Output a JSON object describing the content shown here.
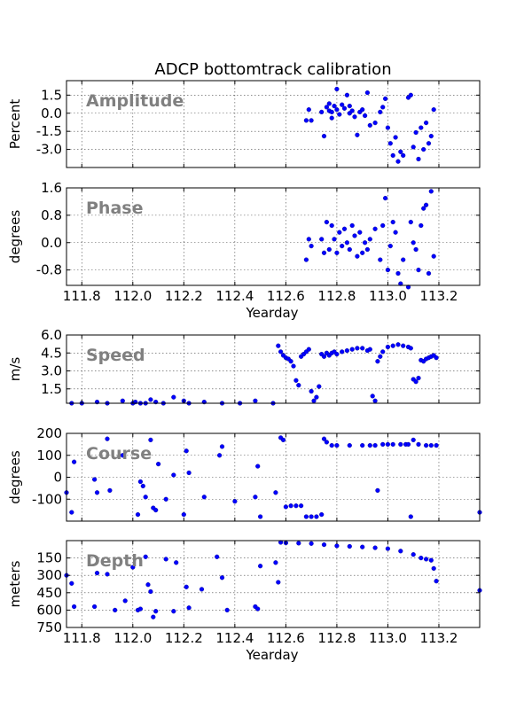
{
  "chart_title": "ADCP bottomtrack calibration",
  "color": "#0000ff",
  "chart_data": [
    {
      "type": "scatter",
      "panel_label": "Amplitude",
      "ylabel": "Percent",
      "xlabel": "",
      "xlim": [
        111.74,
        113.36
      ],
      "ylim": [
        -4.5,
        2.7
      ],
      "ylim_inverted": false,
      "yticks": [
        1.5,
        0.0,
        -1.5,
        -3.0
      ],
      "ytick_labels": [
        "1.5",
        "0.0",
        "-1.5",
        "-3.0"
      ],
      "xticks": [
        111.8,
        112.0,
        112.2,
        112.4,
        112.6,
        112.8,
        113.0,
        113.2
      ],
      "xtick_labels": [],
      "grid": true,
      "x": [
        112.68,
        112.69,
        112.7,
        112.74,
        112.75,
        112.76,
        112.77,
        112.77,
        112.78,
        112.78,
        112.79,
        112.8,
        112.8,
        112.81,
        112.82,
        112.83,
        112.84,
        112.85,
        112.85,
        112.86,
        112.87,
        112.88,
        112.89,
        112.9,
        112.91,
        112.92,
        112.93,
        112.95,
        112.97,
        112.98,
        112.99,
        113.0,
        113.01,
        113.02,
        113.03,
        113.04,
        113.05,
        113.06,
        113.08,
        113.09,
        113.1,
        113.11,
        113.12,
        113.13,
        113.14,
        113.15,
        113.16,
        113.17,
        113.18
      ],
      "y": [
        -0.6,
        0.3,
        -0.6,
        0.1,
        -1.9,
        0.5,
        0.2,
        0.8,
        0.1,
        -0.4,
        0.6,
        0.3,
        2.0,
        -0.1,
        0.7,
        0.4,
        1.5,
        0.0,
        0.6,
        0.2,
        -0.3,
        -1.8,
        0.1,
        0.3,
        -0.2,
        1.7,
        -1.0,
        -0.8,
        0.1,
        0.5,
        1.2,
        -1.2,
        -2.5,
        -3.5,
        -2.0,
        -4.0,
        -3.2,
        -3.5,
        1.3,
        1.5,
        -2.8,
        -1.6,
        -3.8,
        -1.2,
        -3.0,
        -0.8,
        -2.5,
        -1.9,
        0.3
      ]
    },
    {
      "type": "scatter",
      "panel_label": "Phase",
      "ylabel": "degrees",
      "xlabel": "Yearday",
      "xlim": [
        111.74,
        113.36
      ],
      "ylim": [
        -1.25,
        1.6
      ],
      "ylim_inverted": false,
      "yticks": [
        1.6,
        0.8,
        0.0,
        -0.8
      ],
      "ytick_labels": [
        "1.6",
        "0.8",
        "0.0",
        "-0.8"
      ],
      "xticks": [
        111.8,
        112.0,
        112.2,
        112.4,
        112.6,
        112.8,
        113.0,
        113.2
      ],
      "xtick_labels": [
        "111.8",
        "112.0",
        "112.2",
        "112.4",
        "112.6",
        "112.8",
        "113.0",
        "113.2"
      ],
      "grid": true,
      "x": [
        112.68,
        112.69,
        112.7,
        112.74,
        112.75,
        112.76,
        112.77,
        112.78,
        112.79,
        112.8,
        112.81,
        112.82,
        112.83,
        112.84,
        112.85,
        112.86,
        112.87,
        112.88,
        112.89,
        112.9,
        112.91,
        112.92,
        112.93,
        112.95,
        112.97,
        112.98,
        112.99,
        113.0,
        113.01,
        113.02,
        113.03,
        113.04,
        113.05,
        113.06,
        113.08,
        113.09,
        113.1,
        113.11,
        113.12,
        113.13,
        113.14,
        113.15,
        113.16,
        113.17,
        113.18
      ],
      "y": [
        -0.5,
        0.1,
        -0.1,
        0.1,
        -0.3,
        0.6,
        -0.2,
        0.5,
        0.1,
        -0.3,
        0.3,
        -0.1,
        0.4,
        0.0,
        -0.2,
        0.5,
        0.2,
        -0.4,
        0.3,
        -0.3,
        0.0,
        -0.2,
        0.1,
        0.4,
        -0.5,
        0.5,
        1.3,
        -0.8,
        -0.1,
        0.6,
        0.3,
        -0.9,
        -1.2,
        -0.5,
        -1.3,
        0.6,
        0.0,
        -0.2,
        -0.8,
        0.5,
        1.0,
        1.1,
        -0.9,
        1.5,
        -0.4
      ]
    },
    {
      "type": "scatter",
      "panel_label": "Speed",
      "ylabel": "m/s",
      "xlabel": "",
      "xlim": [
        111.74,
        113.36
      ],
      "ylim": [
        0.3,
        6.0
      ],
      "ylim_inverted": false,
      "yticks": [
        6.0,
        4.5,
        3.0,
        1.5
      ],
      "ytick_labels": [
        "6.0",
        "4.5",
        "3.0",
        "1.5"
      ],
      "xticks": [
        111.8,
        112.0,
        112.2,
        112.4,
        112.6,
        112.8,
        113.0,
        113.2
      ],
      "xtick_labels": [],
      "grid": true,
      "x": [
        111.76,
        111.8,
        111.86,
        111.9,
        111.96,
        112.0,
        112.01,
        112.03,
        112.05,
        112.07,
        112.09,
        112.12,
        112.16,
        112.2,
        112.22,
        112.28,
        112.35,
        112.42,
        112.48,
        112.55,
        112.57,
        112.58,
        112.59,
        112.6,
        112.61,
        112.62,
        112.63,
        112.64,
        112.65,
        112.66,
        112.67,
        112.68,
        112.69,
        112.7,
        112.71,
        112.72,
        112.73,
        112.74,
        112.75,
        112.76,
        112.77,
        112.78,
        112.79,
        112.8,
        112.82,
        112.84,
        112.86,
        112.88,
        112.9,
        112.92,
        112.93,
        112.94,
        112.95,
        112.96,
        112.97,
        112.98,
        113.0,
        113.02,
        113.04,
        113.06,
        113.08,
        113.09,
        113.1,
        113.11,
        113.12,
        113.13,
        113.14,
        113.15,
        113.16,
        113.17,
        113.18,
        113.19
      ],
      "y": [
        0.3,
        0.3,
        0.4,
        0.3,
        0.5,
        0.3,
        0.4,
        0.3,
        0.3,
        0.6,
        0.4,
        0.3,
        0.8,
        0.5,
        0.3,
        0.4,
        0.3,
        0.3,
        0.5,
        0.3,
        5.1,
        4.6,
        4.3,
        4.1,
        4.0,
        3.8,
        3.4,
        2.2,
        1.8,
        4.2,
        4.4,
        4.6,
        4.8,
        1.3,
        0.5,
        0.8,
        1.7,
        4.4,
        4.2,
        4.5,
        4.3,
        4.5,
        4.6,
        4.4,
        4.6,
        4.7,
        4.8,
        4.9,
        4.9,
        4.7,
        4.8,
        0.9,
        0.5,
        3.8,
        4.2,
        4.6,
        5.0,
        5.1,
        5.2,
        5.1,
        5.0,
        4.9,
        2.3,
        2.1,
        2.4,
        3.9,
        3.8,
        4.0,
        4.1,
        4.2,
        4.3,
        4.1
      ]
    },
    {
      "type": "scatter",
      "panel_label": "Course",
      "ylabel": "degrees",
      "xlabel": "",
      "xlim": [
        111.74,
        113.36
      ],
      "ylim": [
        -200,
        200
      ],
      "ylim_inverted": false,
      "yticks": [
        200,
        100,
        0,
        -100
      ],
      "ytick_labels": [
        "200",
        "100",
        "0",
        "-100"
      ],
      "xticks": [
        111.8,
        112.0,
        112.2,
        112.4,
        112.6,
        112.8,
        113.0,
        113.2
      ],
      "xtick_labels": [],
      "grid": true,
      "x": [
        111.74,
        111.76,
        111.77,
        111.85,
        111.86,
        111.9,
        111.91,
        111.96,
        112.02,
        112.03,
        112.04,
        112.05,
        112.07,
        112.08,
        112.09,
        112.1,
        112.13,
        112.16,
        112.2,
        112.21,
        112.22,
        112.28,
        112.34,
        112.35,
        112.4,
        112.48,
        112.49,
        112.5,
        112.56,
        112.58,
        112.59,
        112.6,
        112.62,
        112.64,
        112.66,
        112.68,
        112.7,
        112.72,
        112.74,
        112.75,
        112.76,
        112.78,
        112.8,
        112.85,
        112.9,
        112.93,
        112.95,
        112.96,
        112.98,
        113.0,
        113.02,
        113.05,
        113.07,
        113.08,
        113.09,
        113.1,
        113.12,
        113.15,
        113.17,
        113.19,
        113.36
      ],
      "y": [
        -70,
        -160,
        70,
        -10,
        -70,
        175,
        -60,
        100,
        -170,
        -20,
        -40,
        -90,
        170,
        -140,
        -150,
        60,
        -100,
        10,
        -170,
        120,
        20,
        -90,
        100,
        140,
        -110,
        -90,
        50,
        -180,
        -70,
        180,
        170,
        -135,
        -130,
        -130,
        -130,
        -180,
        -180,
        -180,
        -170,
        175,
        160,
        145,
        145,
        145,
        145,
        145,
        145,
        -60,
        150,
        150,
        150,
        150,
        150,
        150,
        -180,
        170,
        150,
        145,
        145,
        145,
        -160
      ]
    },
    {
      "type": "scatter",
      "panel_label": "Depth",
      "ylabel": "meters",
      "xlabel": "Yearday",
      "xlim": [
        111.74,
        113.36
      ],
      "ylim": [
        750,
        0
      ],
      "ylim_inverted": true,
      "yticks": [
        150,
        300,
        450,
        600,
        750
      ],
      "ytick_labels": [
        "150",
        "300",
        "450",
        "600",
        "750"
      ],
      "xticks": [
        111.8,
        112.0,
        112.2,
        112.4,
        112.6,
        112.8,
        113.0,
        113.2
      ],
      "xtick_labels": [
        "111.8",
        "112.0",
        "112.2",
        "112.4",
        "112.6",
        "112.8",
        "113.0",
        "113.2"
      ],
      "grid": true,
      "x": [
        111.74,
        111.76,
        111.77,
        111.85,
        111.86,
        111.9,
        111.93,
        111.97,
        112.0,
        112.02,
        112.03,
        112.05,
        112.06,
        112.07,
        112.08,
        112.09,
        112.13,
        112.16,
        112.17,
        112.21,
        112.22,
        112.27,
        112.33,
        112.35,
        112.37,
        112.48,
        112.49,
        112.5,
        112.56,
        112.57,
        112.58,
        112.6,
        112.65,
        112.7,
        112.75,
        112.8,
        112.85,
        112.9,
        112.95,
        113.0,
        113.05,
        113.1,
        113.13,
        113.15,
        113.17,
        113.18,
        113.19,
        113.36
      ],
      "y": [
        300,
        370,
        570,
        570,
        280,
        290,
        600,
        520,
        230,
        600,
        590,
        140,
        380,
        440,
        660,
        610,
        160,
        610,
        190,
        400,
        580,
        420,
        140,
        320,
        600,
        570,
        590,
        220,
        190,
        360,
        15,
        20,
        22,
        25,
        35,
        45,
        50,
        55,
        62,
        70,
        90,
        120,
        150,
        160,
        170,
        240,
        350,
        430
      ]
    }
  ]
}
